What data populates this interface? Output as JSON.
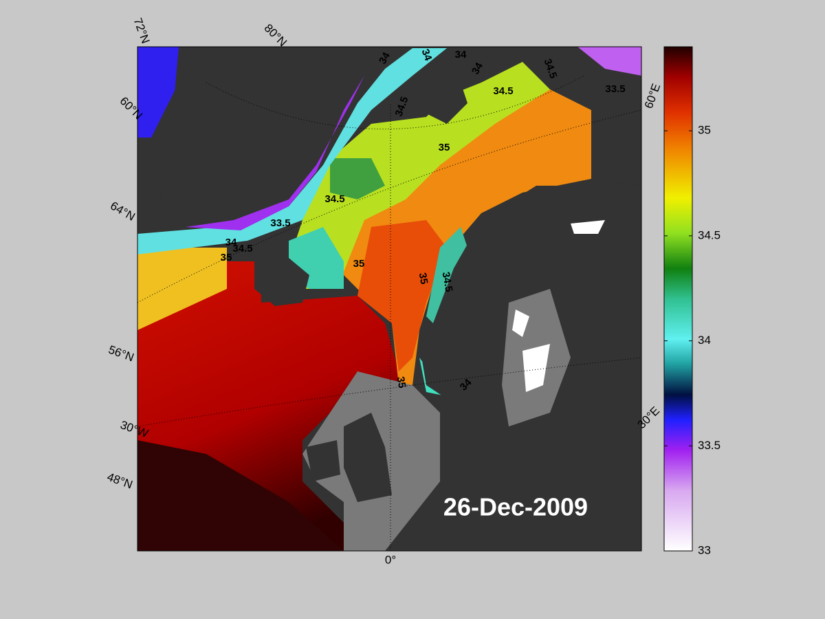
{
  "map": {
    "coordinate_labels": [
      "72°N",
      "80°N",
      "60°N",
      "64°N",
      "56°N",
      "30°W",
      "48°N",
      "0°",
      "30°E",
      "60°E"
    ],
    "contour_labels": [
      34,
      34,
      34,
      34,
      34.5,
      34.5,
      33.5,
      34.5,
      35,
      34.5,
      33.5,
      34,
      34.5,
      35,
      35,
      35,
      34.5,
      35,
      34
    ],
    "date": "26-Dec-2009"
  },
  "colorbar": {
    "ylim": [
      33,
      35.4
    ],
    "yticks": [
      33,
      33.5,
      34,
      34.5,
      35
    ]
  }
}
